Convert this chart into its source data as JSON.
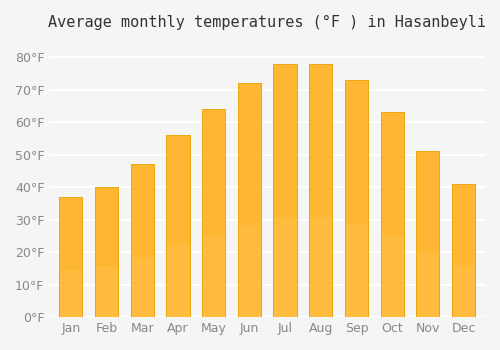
{
  "title": "Average monthly temperatures (°F ) in Hasanbeyli",
  "months": [
    "Jan",
    "Feb",
    "Mar",
    "Apr",
    "May",
    "Jun",
    "Jul",
    "Aug",
    "Sep",
    "Oct",
    "Nov",
    "Dec"
  ],
  "values": [
    37,
    40,
    47,
    56,
    64,
    72,
    78,
    78,
    73,
    63,
    51,
    41
  ],
  "bar_color_top": "#FFA500",
  "bar_color_bottom": "#FFD080",
  "ylim": [
    0,
    85
  ],
  "yticks": [
    0,
    10,
    20,
    30,
    40,
    50,
    60,
    70,
    80
  ],
  "ytick_labels": [
    "0°F",
    "10°F",
    "20°F",
    "30°F",
    "40°F",
    "50°F",
    "60°F",
    "70°F",
    "80°F"
  ],
  "background_color": "#f5f5f5",
  "grid_color": "#ffffff",
  "title_fontsize": 11,
  "tick_fontsize": 9,
  "bar_edge_color": "#e8a000"
}
